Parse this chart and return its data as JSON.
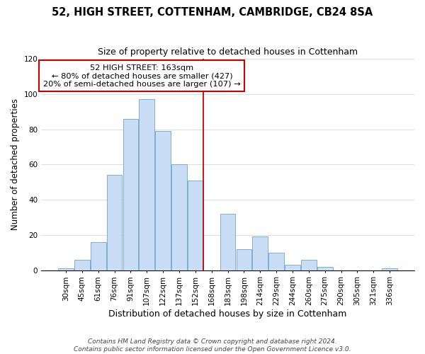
{
  "title": "52, HIGH STREET, COTTENHAM, CAMBRIDGE, CB24 8SA",
  "subtitle": "Size of property relative to detached houses in Cottenham",
  "xlabel": "Distribution of detached houses by size in Cottenham",
  "ylabel": "Number of detached properties",
  "bar_labels": [
    "30sqm",
    "45sqm",
    "61sqm",
    "76sqm",
    "91sqm",
    "107sqm",
    "122sqm",
    "137sqm",
    "152sqm",
    "168sqm",
    "183sqm",
    "198sqm",
    "214sqm",
    "229sqm",
    "244sqm",
    "260sqm",
    "275sqm",
    "290sqm",
    "305sqm",
    "321sqm",
    "336sqm"
  ],
  "bar_heights": [
    1,
    6,
    16,
    54,
    86,
    97,
    79,
    60,
    51,
    0,
    32,
    12,
    19,
    10,
    3,
    6,
    2,
    0,
    0,
    0,
    1
  ],
  "bar_color": "#c9ddf5",
  "bar_edge_color": "#7bafd4",
  "vline_index": 9,
  "vline_color": "#cc0000",
  "annotation_title": "52 HIGH STREET: 163sqm",
  "annotation_line1": "← 80% of detached houses are smaller (427)",
  "annotation_line2": "20% of semi-detached houses are larger (107) →",
  "annotation_box_facecolor": "#ffffff",
  "annotation_box_edgecolor": "#cc0000",
  "footer1": "Contains HM Land Registry data © Crown copyright and database right 2024.",
  "footer2": "Contains public sector information licensed under the Open Government Licence v3.0.",
  "ylim": [
    0,
    120
  ],
  "yticks": [
    0,
    20,
    40,
    60,
    80,
    100,
    120
  ],
  "grid_color": "#d8d8d8",
  "title_fontsize": 10.5,
  "subtitle_fontsize": 9,
  "ylabel_fontsize": 8.5,
  "xlabel_fontsize": 9,
  "tick_fontsize": 7.5,
  "footer_fontsize": 6.5
}
